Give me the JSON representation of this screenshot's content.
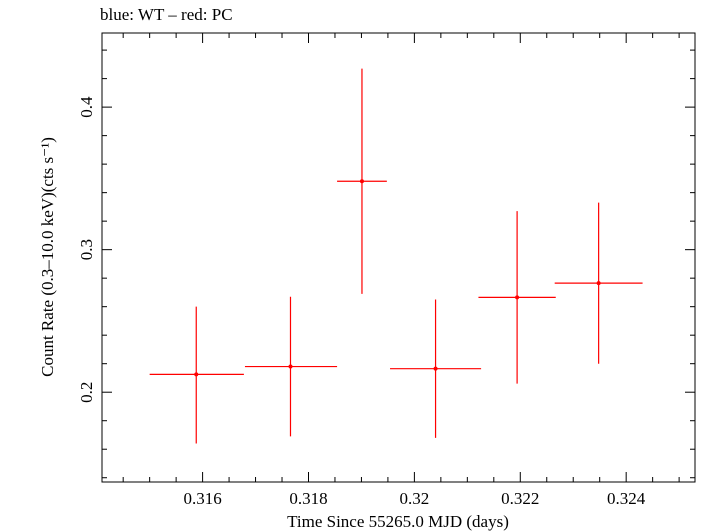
{
  "chart_data": {
    "type": "scatter",
    "title": "blue: WT – red: PC",
    "xlabel": "Time Since 55265.0 MJD (days)",
    "ylabel": "Count Rate (0.3–10.0 keV)(cts s⁻¹)",
    "xlim": [
      0.3141,
      0.3253
    ],
    "ylim": [
      0.137,
      0.452
    ],
    "xticks": [
      0.316,
      0.318,
      0.32,
      0.322,
      0.324
    ],
    "xtick_labels": [
      "0.316",
      "0.318",
      "0.32",
      "0.322",
      "0.324"
    ],
    "yticks": [
      0.2,
      0.3,
      0.4
    ],
    "ytick_labels": [
      "0.2",
      "0.3",
      "0.4"
    ],
    "grid": false,
    "legend": "none",
    "series": [
      {
        "color": "#ff0000",
        "points": [
          {
            "x": 0.31588,
            "xerr_low": 0.00088,
            "xerr_high": 0.0009,
            "y": 0.2125,
            "yerr_low": 0.0485,
            "yerr_high": 0.0475
          },
          {
            "x": 0.31766,
            "xerr_low": 0.00086,
            "xerr_high": 0.00088,
            "y": 0.218,
            "yerr_low": 0.049,
            "yerr_high": 0.049
          },
          {
            "x": 0.31901,
            "xerr_low": 0.00047,
            "xerr_high": 0.00047,
            "y": 0.348,
            "yerr_low": 0.079,
            "yerr_high": 0.079
          },
          {
            "x": 0.3204,
            "xerr_low": 0.00086,
            "xerr_high": 0.00086,
            "y": 0.2165,
            "yerr_low": 0.0485,
            "yerr_high": 0.0485
          },
          {
            "x": 0.32194,
            "xerr_low": 0.00073,
            "xerr_high": 0.00073,
            "y": 0.2665,
            "yerr_low": 0.0605,
            "yerr_high": 0.0605
          },
          {
            "x": 0.32348,
            "xerr_low": 0.00083,
            "xerr_high": 0.00083,
            "y": 0.2765,
            "yerr_low": 0.0565,
            "yerr_high": 0.0565
          }
        ]
      }
    ]
  }
}
